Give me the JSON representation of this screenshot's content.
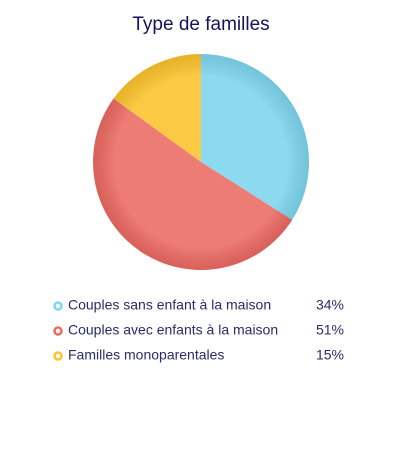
{
  "chart_data": {
    "type": "pie",
    "title": "Type de familles",
    "categories": [
      "Couples sans enfant à la maison",
      "Couples avec enfants à la maison",
      "Familles monoparentales"
    ],
    "values": [
      34,
      51,
      15
    ],
    "value_labels": [
      "34%",
      "51%",
      "15%"
    ],
    "colors": [
      "#7dd5ee",
      "#eb6a62",
      "#fbc22b"
    ]
  }
}
